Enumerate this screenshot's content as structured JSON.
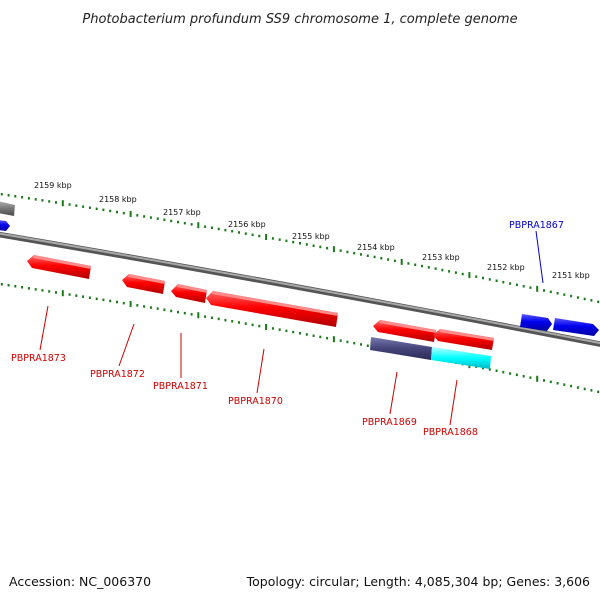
{
  "title": "Photobacterium profundum SS9 chromosome 1, complete genome",
  "accession": "Accession: NC_006370",
  "topology": "Topology: circular; Length: 4,085,304 bp; Genes: 3,606",
  "colors": {
    "backbone": "#7d7d7d",
    "ruler_tick": "#1a7a1a",
    "gene_red": "#ff0000",
    "gene_blue": "#0000ee",
    "gene_navy": "#44447a",
    "gene_cyan": "#00ffff",
    "label_red": "#cc0000",
    "label_blue": "#0000cc"
  },
  "kbp_labels": [
    "2159 kbp",
    "2158 kbp",
    "2157 kbp",
    "2156 kbp",
    "2155 kbp",
    "2154 kbp",
    "2153 kbp",
    "2152 kbp",
    "2151 kbp"
  ],
  "genes": [
    {
      "name": "PBPRA1873",
      "color": "red",
      "strand": "reverse"
    },
    {
      "name": "PBPRA1872",
      "color": "red",
      "strand": "reverse"
    },
    {
      "name": "PBPRA1871",
      "color": "red",
      "strand": "reverse"
    },
    {
      "name": "PBPRA1870",
      "color": "red",
      "strand": "reverse"
    },
    {
      "name": "PBPRA1869",
      "color": "red",
      "strand": "reverse"
    },
    {
      "name": "PBPRA1868",
      "color": "red",
      "strand": "reverse"
    },
    {
      "name": "PBPRA1867",
      "color": "blue",
      "strand": "forward"
    }
  ],
  "inner_features": [
    {
      "color": "navy"
    },
    {
      "color": "cyan"
    }
  ]
}
